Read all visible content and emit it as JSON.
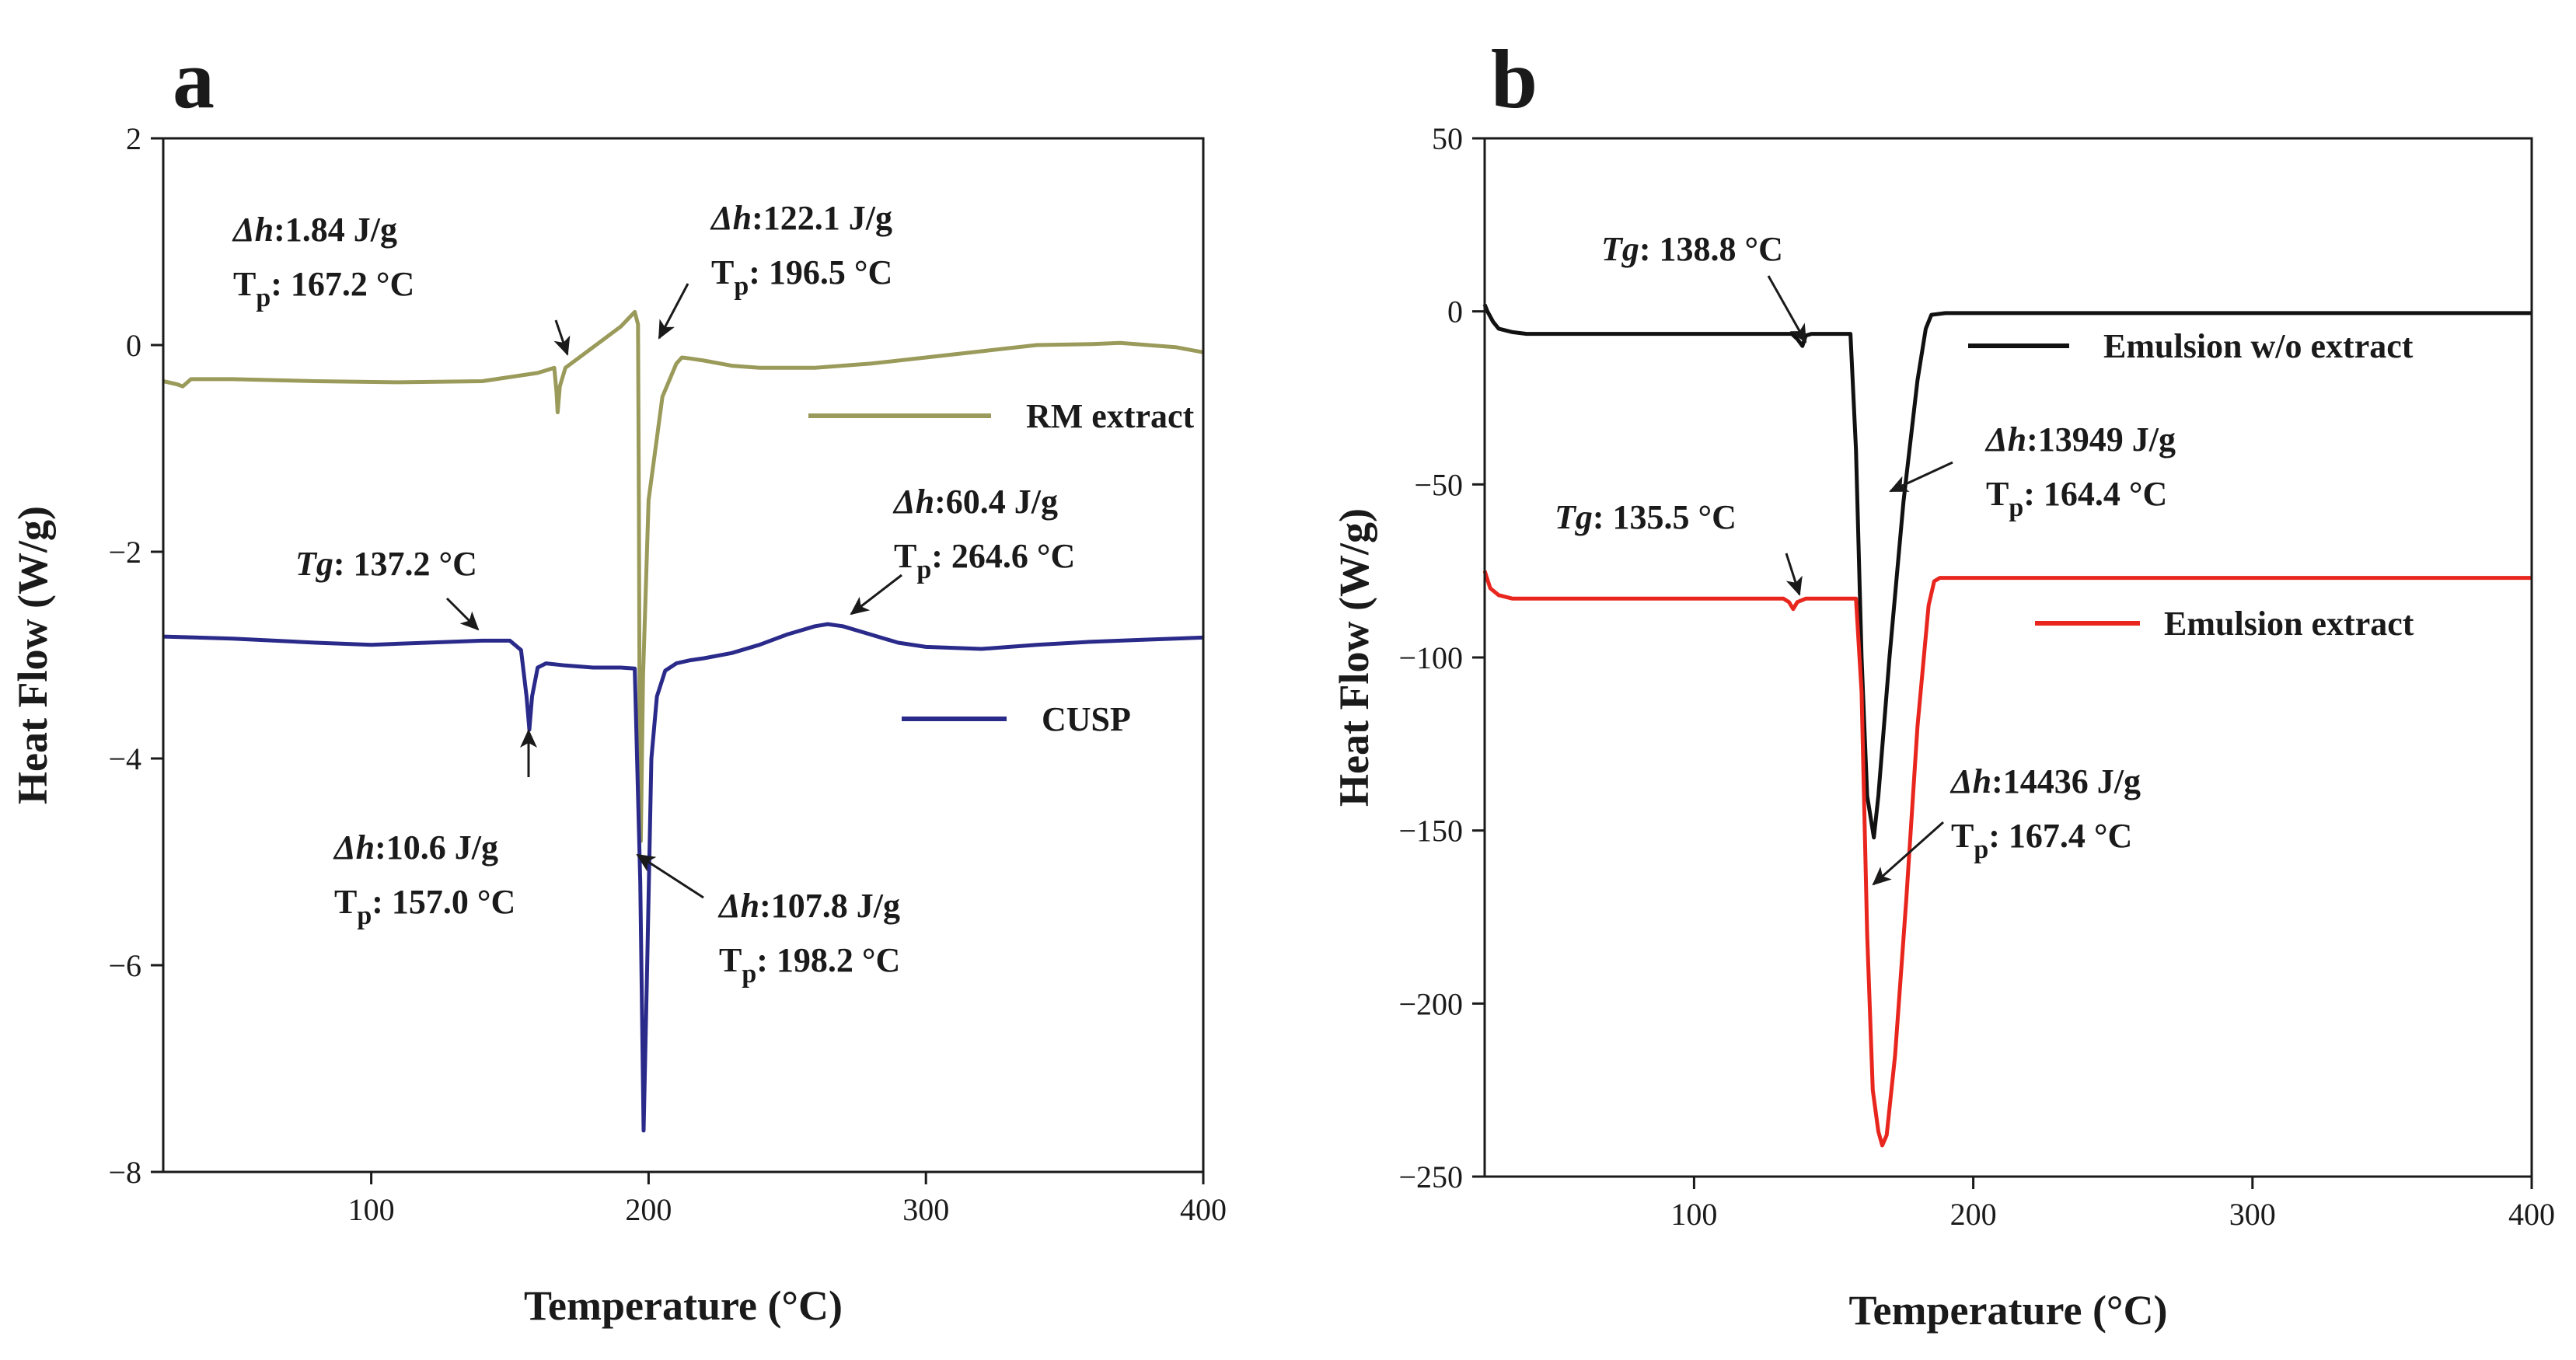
{
  "chart_data": [
    {
      "type": "line",
      "panel_label": "a",
      "xlabel": "Temperature (°C)",
      "ylabel": "Heat Flow (W/g)",
      "xlim": [
        25,
        400
      ],
      "ylim": [
        -8,
        2
      ],
      "xticks": [
        100,
        200,
        300,
        400
      ],
      "xtick_labels": [
        "100",
        "200",
        "300",
        "400"
      ],
      "yticks": [
        2,
        0,
        -2,
        -4,
        -6,
        -8
      ],
      "ytick_labels": [
        "2",
        "0",
        "−2",
        "−4",
        "−6",
        "−8"
      ],
      "grid": false,
      "series": [
        {
          "name": "RM extract",
          "color": "#9a9a5a",
          "x": [
            25,
            30,
            32,
            35,
            50,
            80,
            110,
            140,
            160,
            166,
            166.8,
            167.2,
            168,
            170,
            180,
            190,
            195,
            196.2,
            196.5,
            196.8,
            197.2,
            198,
            200,
            205,
            210,
            212,
            215,
            220,
            230,
            240,
            260,
            280,
            300,
            320,
            340,
            360,
            370,
            380,
            390,
            400
          ],
          "y": [
            -0.35,
            -0.38,
            -0.4,
            -0.33,
            -0.33,
            -0.35,
            -0.36,
            -0.35,
            -0.27,
            -0.22,
            -0.45,
            -0.65,
            -0.4,
            -0.22,
            -0.02,
            0.18,
            0.32,
            0.2,
            -1.5,
            -4.0,
            -4.8,
            -3.2,
            -1.5,
            -0.5,
            -0.18,
            -0.12,
            -0.13,
            -0.15,
            -0.2,
            -0.22,
            -0.22,
            -0.18,
            -0.12,
            -0.06,
            0.0,
            0.01,
            0.02,
            0.0,
            -0.02,
            -0.07
          ]
        },
        {
          "name": "CUSP",
          "color": "#2a2a8a",
          "x": [
            25,
            50,
            80,
            100,
            120,
            140,
            150,
            154,
            156,
            157,
            158,
            160,
            163,
            170,
            180,
            190,
            195,
            197,
            198.2,
            199.5,
            201,
            203,
            206,
            210,
            215,
            220,
            230,
            240,
            250,
            260,
            264.6,
            270,
            280,
            290,
            300,
            320,
            340,
            360,
            380,
            400
          ],
          "y": [
            -2.82,
            -2.84,
            -2.88,
            -2.9,
            -2.88,
            -2.86,
            -2.86,
            -2.95,
            -3.4,
            -3.72,
            -3.4,
            -3.12,
            -3.08,
            -3.1,
            -3.12,
            -3.12,
            -3.13,
            -5.2,
            -7.6,
            -6.0,
            -4.0,
            -3.4,
            -3.15,
            -3.08,
            -3.05,
            -3.03,
            -2.98,
            -2.9,
            -2.8,
            -2.72,
            -2.7,
            -2.72,
            -2.8,
            -2.88,
            -2.92,
            -2.94,
            -2.9,
            -2.87,
            -2.85,
            -2.83
          ]
        }
      ],
      "annotations": [
        {
          "lines": [
            [
              [
                "i",
                "Δh"
              ],
              [
                "b",
                ":1.84 J/g"
              ]
            ],
            [
              [
                "b",
                "T"
              ],
              [
                "sub",
                "p"
              ],
              [
                "b",
                ": 167.2 °C"
              ]
            ]
          ]
        },
        {
          "lines": [
            [
              [
                "i",
                "Δh"
              ],
              [
                "b",
                ":122.1 J/g"
              ]
            ],
            [
              [
                "b",
                "T"
              ],
              [
                "sub",
                "p"
              ],
              [
                "b",
                ": 196.5 °C"
              ]
            ]
          ]
        },
        {
          "lines": [
            [
              [
                "i",
                "Δh"
              ],
              [
                "b",
                ":60.4 J/g"
              ]
            ],
            [
              [
                "b",
                "T"
              ],
              [
                "sub",
                "p"
              ],
              [
                "b",
                ": 264.6 °C"
              ]
            ]
          ]
        },
        {
          "lines": [
            [
              [
                "i",
                "Tg"
              ],
              [
                "b",
                ": 137.2 °C"
              ]
            ]
          ]
        },
        {
          "lines": [
            [
              [
                "i",
                "Δh"
              ],
              [
                "b",
                ":10.6 J/g"
              ]
            ],
            [
              [
                "b",
                "T"
              ],
              [
                "sub",
                "p"
              ],
              [
                "b",
                ": 157.0 °C"
              ]
            ]
          ]
        },
        {
          "lines": [
            [
              [
                "i",
                "Δh"
              ],
              [
                "b",
                ":107.8 J/g"
              ]
            ],
            [
              [
                "b",
                "T"
              ],
              [
                "sub",
                "p"
              ],
              [
                "b",
                ": 198.2 °C"
              ]
            ]
          ]
        }
      ]
    },
    {
      "type": "line",
      "panel_label": "b",
      "xlabel": "Temperature (°C)",
      "ylabel": "Heat Flow (W/g)",
      "xlim": [
        25,
        400
      ],
      "ylim": [
        -250,
        50
      ],
      "xticks": [
        100,
        200,
        300,
        400
      ],
      "xtick_labels": [
        "100",
        "200",
        "300",
        "400"
      ],
      "yticks": [
        50,
        0,
        -50,
        -100,
        -150,
        -200,
        -250
      ],
      "ytick_labels": [
        "50",
        "0",
        "−50",
        "−100",
        "−150",
        "−200",
        "−250"
      ],
      "grid": false,
      "series": [
        {
          "name": "Emulsion w/o extract",
          "color": "#111111",
          "x": [
            25,
            26,
            28,
            30,
            35,
            40,
            60,
            80,
            100,
            120,
            135,
            137,
            138.8,
            140,
            142,
            150,
            156,
            158,
            160,
            162,
            164.4,
            166,
            170,
            175,
            180,
            183,
            185,
            190,
            200,
            220,
            250,
            300,
            350,
            400
          ],
          "y": [
            2,
            0,
            -3,
            -5,
            -6,
            -6.5,
            -6.5,
            -6.5,
            -6.5,
            -6.5,
            -6.5,
            -8,
            -10,
            -7,
            -6.5,
            -6.5,
            -6.5,
            -40,
            -100,
            -140,
            -152,
            -140,
            -100,
            -55,
            -20,
            -5,
            -1,
            -0.5,
            -0.5,
            -0.5,
            -0.5,
            -0.5,
            -0.5,
            -0.5
          ]
        },
        {
          "name": "Emulsion extract",
          "color": "#e8261e",
          "x": [
            25,
            27,
            30,
            35,
            40,
            60,
            80,
            100,
            120,
            132,
            134,
            135.5,
            137,
            140,
            150,
            158,
            160,
            162,
            164,
            166,
            167.4,
            169,
            172,
            176,
            180,
            184,
            186,
            188,
            190,
            200,
            250,
            300,
            350,
            400
          ],
          "y": [
            -75,
            -80,
            -82,
            -83,
            -83,
            -83,
            -83,
            -83,
            -83,
            -83,
            -84,
            -86,
            -84,
            -83,
            -83,
            -83,
            -110,
            -180,
            -225,
            -237,
            -241,
            -238,
            -215,
            -170,
            -120,
            -85,
            -78,
            -77,
            -77,
            -77,
            -77,
            -77,
            -77,
            -77
          ]
        }
      ],
      "annotations": [
        {
          "lines": [
            [
              [
                "i",
                "Tg"
              ],
              [
                "b",
                ": 138.8 °C"
              ]
            ]
          ]
        },
        {
          "lines": [
            [
              [
                "i",
                "Δh"
              ],
              [
                "b",
                ":13949 J/g"
              ]
            ],
            [
              [
                "b",
                "T"
              ],
              [
                "sub",
                "p"
              ],
              [
                "b",
                ": 164.4 °C"
              ]
            ]
          ]
        },
        {
          "lines": [
            [
              [
                "i",
                "Tg"
              ],
              [
                "b",
                ": 135.5 °C"
              ]
            ]
          ]
        },
        {
          "lines": [
            [
              [
                "i",
                "Δh"
              ],
              [
                "b",
                ":14436 J/g"
              ]
            ],
            [
              [
                "b",
                "T"
              ],
              [
                "sub",
                "p"
              ],
              [
                "b",
                ": 167.4 °C"
              ]
            ]
          ]
        }
      ]
    }
  ]
}
